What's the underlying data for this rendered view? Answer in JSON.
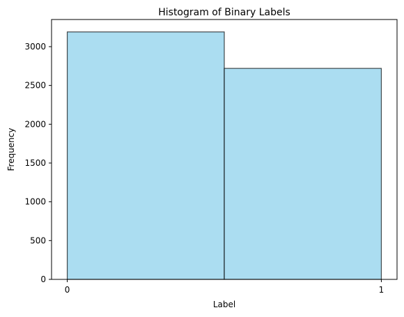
{
  "chart_data": {
    "type": "bar",
    "title": "Histogram of Binary Labels",
    "xlabel": "Label",
    "ylabel": "Frequency",
    "bins": [
      {
        "start": 0,
        "end": 0.5,
        "value": 3190
      },
      {
        "start": 0.5,
        "end": 1,
        "value": 2720
      }
    ],
    "xlim": [
      -0.05,
      1.05
    ],
    "ylim": [
      0,
      3350
    ],
    "x_ticks": [
      0,
      1
    ],
    "x_tick_labels": [
      "0",
      "1"
    ],
    "y_ticks": [
      0,
      500,
      1000,
      1500,
      2000,
      2500,
      3000
    ],
    "y_tick_labels": [
      "0",
      "500",
      "1000",
      "1500",
      "2000",
      "2500",
      "3000"
    ],
    "grid": false,
    "colors": {
      "bar_fill": "#87CEEB",
      "bar_fill_opacity": 0.7,
      "bar_edge": "#000000"
    }
  }
}
